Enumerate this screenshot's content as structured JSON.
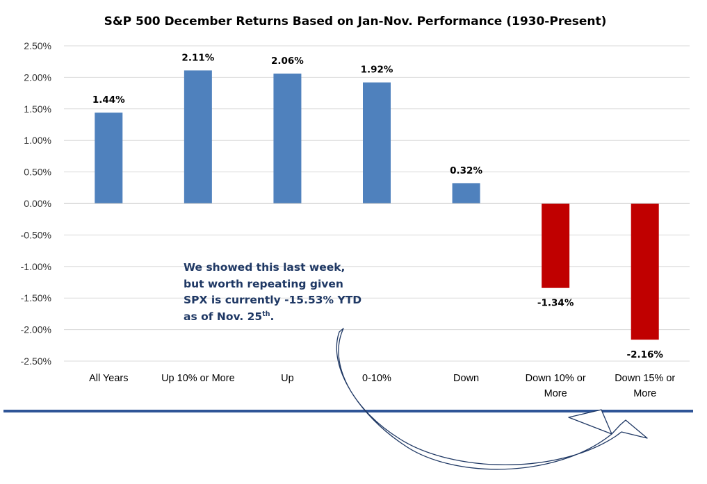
{
  "chart_data": {
    "type": "bar",
    "title": "S&P 500 December Returns Based on Jan-Nov. Performance (1930-Present)",
    "categories": [
      [
        "All Years"
      ],
      [
        "Up 10% or More"
      ],
      [
        "Up"
      ],
      [
        "0-10%"
      ],
      [
        "Down"
      ],
      [
        "Down 10% or",
        "More"
      ],
      [
        "Down 15% or",
        "More"
      ]
    ],
    "values": [
      1.44,
      2.11,
      2.06,
      1.92,
      0.32,
      -1.34,
      -2.16
    ],
    "data_labels": [
      "1.44%",
      "2.11%",
      "2.06%",
      "1.92%",
      "0.32%",
      "-1.34%",
      "-2.16%"
    ],
    "yticks": [
      2.5,
      2.0,
      1.5,
      1.0,
      0.5,
      0.0,
      -0.5,
      -1.0,
      -1.5,
      -2.0,
      -2.5
    ],
    "ytick_labels": [
      "2.50%",
      "2.00%",
      "1.50%",
      "1.00%",
      "0.50%",
      "0.00%",
      "-0.50%",
      "-1.00%",
      "-1.50%",
      "-2.00%",
      "-2.50%"
    ],
    "ylim": [
      -2.5,
      2.5
    ],
    "grid": true,
    "legend": "none",
    "colors": {
      "positive": "#4f81bd",
      "negative": "#c00000",
      "grid": "#d9d9d9",
      "rule": "#2f5597",
      "annotation": "#1f3864"
    }
  },
  "annotation": {
    "lines": [
      "We showed this last week,",
      "but worth repeating given",
      "SPX is currently -15.53% YTD"
    ],
    "last_line_prefix": "as of Nov. 25",
    "last_line_sup": "th",
    "last_line_suffix": "."
  }
}
